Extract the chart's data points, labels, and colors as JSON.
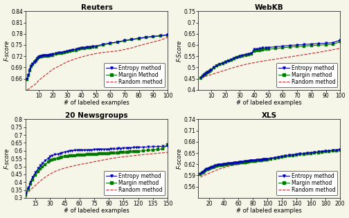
{
  "subplots": [
    {
      "title": "Reuters",
      "xlabel": "# of labeled examples",
      "ylabel": "F-score",
      "xlim": [
        1,
        100
      ],
      "ylim": [
        0.63,
        0.84
      ],
      "xticks": [
        10,
        20,
        30,
        40,
        50,
        60,
        70,
        80,
        90,
        100
      ],
      "ytick_vals": [
        0.66,
        0.69,
        0.72,
        0.75,
        0.78,
        0.81,
        0.84
      ],
      "ytick_labels": [
        "0.66",
        "0.69",
        "0.72",
        "0.75",
        "0.78",
        "0.81",
        "0.84"
      ],
      "entropy_x": [
        2,
        3,
        4,
        5,
        6,
        7,
        8,
        9,
        10,
        11,
        12,
        13,
        14,
        15,
        16,
        17,
        18,
        19,
        20,
        22,
        24,
        26,
        28,
        30,
        32,
        34,
        36,
        38,
        40,
        42,
        44,
        46,
        48,
        50,
        55,
        60,
        65,
        70,
        75,
        80,
        85,
        90,
        95,
        100
      ],
      "entropy_y": [
        0.66,
        0.67,
        0.685,
        0.695,
        0.7,
        0.705,
        0.71,
        0.715,
        0.718,
        0.72,
        0.721,
        0.722,
        0.722,
        0.722,
        0.723,
        0.723,
        0.724,
        0.724,
        0.725,
        0.727,
        0.729,
        0.73,
        0.732,
        0.733,
        0.735,
        0.737,
        0.738,
        0.74,
        0.742,
        0.743,
        0.744,
        0.745,
        0.746,
        0.747,
        0.752,
        0.755,
        0.758,
        0.762,
        0.765,
        0.768,
        0.771,
        0.773,
        0.775,
        0.777
      ],
      "margin_x": [
        2,
        3,
        4,
        5,
        6,
        7,
        8,
        9,
        10,
        11,
        12,
        13,
        14,
        15,
        16,
        17,
        18,
        19,
        20,
        22,
        24,
        26,
        28,
        30,
        32,
        34,
        36,
        38,
        40,
        42,
        44,
        46,
        48,
        50,
        55,
        60,
        65,
        70,
        75,
        80,
        85,
        90,
        95,
        100
      ],
      "margin_y": [
        0.658,
        0.668,
        0.682,
        0.692,
        0.698,
        0.703,
        0.708,
        0.713,
        0.716,
        0.718,
        0.719,
        0.72,
        0.72,
        0.72,
        0.721,
        0.721,
        0.722,
        0.722,
        0.723,
        0.725,
        0.727,
        0.728,
        0.73,
        0.731,
        0.733,
        0.735,
        0.736,
        0.738,
        0.74,
        0.741,
        0.742,
        0.743,
        0.744,
        0.745,
        0.75,
        0.754,
        0.757,
        0.761,
        0.764,
        0.767,
        0.77,
        0.772,
        0.774,
        0.776
      ],
      "random_x": [
        2,
        3,
        4,
        5,
        6,
        7,
        8,
        9,
        10,
        15,
        20,
        25,
        30,
        35,
        40,
        45,
        50,
        55,
        60,
        65,
        70,
        75,
        80,
        85,
        90,
        95,
        100
      ],
      "random_y": [
        0.63,
        0.632,
        0.635,
        0.638,
        0.64,
        0.643,
        0.646,
        0.65,
        0.655,
        0.67,
        0.685,
        0.695,
        0.705,
        0.712,
        0.718,
        0.723,
        0.727,
        0.73,
        0.732,
        0.734,
        0.738,
        0.742,
        0.748,
        0.753,
        0.758,
        0.763,
        0.77
      ],
      "legend_labels": [
        "Entropy method",
        "Margin Method",
        "Random method"
      ]
    },
    {
      "title": "WebKB",
      "xlabel": "# of labeled examples",
      "ylabel": "F-Score",
      "xlim": [
        1,
        100
      ],
      "ylim": [
        0.4,
        0.75
      ],
      "xticks": [
        10,
        20,
        30,
        40,
        50,
        60,
        70,
        80,
        90,
        100
      ],
      "ytick_vals": [
        0.4,
        0.45,
        0.5,
        0.55,
        0.6,
        0.65,
        0.7,
        0.75
      ],
      "ytick_labels": [
        "0.4",
        "0.45",
        "0.5",
        "0.55",
        "0.6",
        "0.65",
        "0.7",
        "0.75"
      ],
      "entropy_x": [
        3,
        4,
        5,
        6,
        7,
        8,
        9,
        10,
        12,
        14,
        16,
        18,
        20,
        22,
        24,
        26,
        28,
        30,
        32,
        34,
        36,
        38,
        40,
        42,
        44,
        46,
        48,
        50,
        55,
        60,
        65,
        70,
        75,
        80,
        85,
        90,
        95,
        100
      ],
      "entropy_y": [
        0.455,
        0.462,
        0.468,
        0.473,
        0.477,
        0.481,
        0.485,
        0.49,
        0.5,
        0.508,
        0.515,
        0.52,
        0.525,
        0.53,
        0.535,
        0.54,
        0.545,
        0.55,
        0.554,
        0.557,
        0.56,
        0.562,
        0.58,
        0.582,
        0.584,
        0.586,
        0.587,
        0.589,
        0.592,
        0.595,
        0.598,
        0.6,
        0.602,
        0.604,
        0.606,
        0.608,
        0.61,
        0.622
      ],
      "margin_x": [
        3,
        4,
        5,
        6,
        7,
        8,
        9,
        10,
        12,
        14,
        16,
        18,
        20,
        22,
        24,
        26,
        28,
        30,
        32,
        34,
        36,
        38,
        40,
        42,
        44,
        46,
        48,
        50,
        55,
        60,
        65,
        70,
        75,
        80,
        85,
        90,
        95,
        100
      ],
      "margin_y": [
        0.453,
        0.46,
        0.466,
        0.471,
        0.475,
        0.479,
        0.483,
        0.488,
        0.498,
        0.506,
        0.513,
        0.518,
        0.523,
        0.528,
        0.533,
        0.538,
        0.543,
        0.548,
        0.552,
        0.555,
        0.558,
        0.56,
        0.572,
        0.574,
        0.576,
        0.578,
        0.58,
        0.581,
        0.584,
        0.588,
        0.591,
        0.593,
        0.595,
        0.597,
        0.599,
        0.601,
        0.603,
        0.614
      ],
      "random_x": [
        3,
        5,
        7,
        10,
        15,
        20,
        25,
        30,
        35,
        40,
        45,
        50,
        55,
        60,
        65,
        70,
        75,
        80,
        85,
        90,
        95,
        100
      ],
      "random_y": [
        0.453,
        0.458,
        0.462,
        0.468,
        0.478,
        0.488,
        0.498,
        0.507,
        0.515,
        0.521,
        0.527,
        0.532,
        0.537,
        0.542,
        0.547,
        0.552,
        0.557,
        0.562,
        0.567,
        0.573,
        0.579,
        0.585
      ],
      "legend_labels": [
        "Entropy method",
        "Margin method",
        "Random method"
      ]
    },
    {
      "title": "20 Newsgroups",
      "xlabel": "# of labeled examples",
      "ylabel": "F-score",
      "xlim": [
        5,
        150
      ],
      "ylim": [
        0.3,
        0.8
      ],
      "xticks": [
        15,
        30,
        45,
        60,
        75,
        90,
        105,
        120,
        135,
        150
      ],
      "ytick_vals": [
        0.3,
        0.35,
        0.4,
        0.45,
        0.5,
        0.55,
        0.6,
        0.65,
        0.7,
        0.75,
        0.8
      ],
      "ytick_labels": [
        "0.3",
        "0.35",
        "0.4",
        "0.45",
        "0.5",
        "0.55",
        "0.6",
        "0.65",
        "0.7",
        "0.75",
        "0.8"
      ],
      "entropy_x": [
        5,
        8,
        10,
        12,
        15,
        18,
        20,
        22,
        25,
        28,
        30,
        32,
        35,
        38,
        40,
        42,
        45,
        48,
        50,
        52,
        55,
        58,
        60,
        62,
        65,
        68,
        70,
        72,
        75,
        78,
        80,
        82,
        85,
        88,
        90,
        92,
        95,
        98,
        100,
        102,
        105,
        108,
        110,
        112,
        115,
        118,
        120,
        125,
        130,
        135,
        140,
        145,
        150
      ],
      "entropy_y": [
        0.325,
        0.365,
        0.4,
        0.43,
        0.462,
        0.488,
        0.505,
        0.52,
        0.538,
        0.552,
        0.563,
        0.57,
        0.575,
        0.578,
        0.582,
        0.587,
        0.592,
        0.596,
        0.6,
        0.6,
        0.602,
        0.602,
        0.603,
        0.603,
        0.603,
        0.603,
        0.605,
        0.604,
        0.606,
        0.606,
        0.608,
        0.607,
        0.61,
        0.609,
        0.61,
        0.611,
        0.612,
        0.612,
        0.615,
        0.614,
        0.617,
        0.617,
        0.618,
        0.618,
        0.62,
        0.62,
        0.622,
        0.623,
        0.624,
        0.626,
        0.627,
        0.628,
        0.63
      ],
      "margin_x": [
        5,
        8,
        10,
        12,
        15,
        18,
        20,
        22,
        25,
        28,
        30,
        32,
        35,
        38,
        40,
        42,
        45,
        48,
        50,
        52,
        55,
        58,
        60,
        62,
        65,
        68,
        70,
        72,
        75,
        78,
        80,
        82,
        85,
        88,
        90,
        92,
        95,
        98,
        100,
        102,
        105,
        108,
        110,
        112,
        115,
        118,
        120,
        125,
        130,
        135,
        140,
        145,
        150
      ],
      "margin_y": [
        0.318,
        0.355,
        0.388,
        0.415,
        0.445,
        0.468,
        0.483,
        0.496,
        0.513,
        0.527,
        0.537,
        0.543,
        0.548,
        0.551,
        0.555,
        0.558,
        0.562,
        0.565,
        0.568,
        0.568,
        0.57,
        0.571,
        0.572,
        0.573,
        0.574,
        0.575,
        0.576,
        0.576,
        0.578,
        0.578,
        0.58,
        0.58,
        0.582,
        0.582,
        0.583,
        0.584,
        0.585,
        0.586,
        0.588,
        0.589,
        0.59,
        0.591,
        0.592,
        0.593,
        0.595,
        0.596,
        0.597,
        0.6,
        0.602,
        0.605,
        0.608,
        0.612,
        0.638
      ],
      "random_x": [
        5,
        8,
        10,
        15,
        20,
        25,
        30,
        35,
        40,
        45,
        50,
        55,
        60,
        65,
        70,
        75,
        80,
        85,
        90,
        95,
        100,
        110,
        120,
        130,
        140,
        150
      ],
      "random_y": [
        0.318,
        0.338,
        0.352,
        0.38,
        0.408,
        0.432,
        0.452,
        0.468,
        0.48,
        0.49,
        0.498,
        0.505,
        0.512,
        0.518,
        0.523,
        0.53,
        0.536,
        0.542,
        0.548,
        0.553,
        0.558,
        0.565,
        0.572,
        0.578,
        0.584,
        0.59
      ],
      "legend_labels": [
        "Entropy method",
        "Margin method",
        "Random method"
      ]
    },
    {
      "title": "XLS",
      "xlabel": "# of labeled examples",
      "ylabel": "F-score",
      "xlim": [
        5,
        200
      ],
      "ylim": [
        0.53,
        0.74
      ],
      "xticks": [
        20,
        40,
        60,
        80,
        100,
        120,
        140,
        160,
        180,
        200
      ],
      "ytick_vals": [
        0.56,
        0.59,
        0.62,
        0.65,
        0.68,
        0.71,
        0.74
      ],
      "ytick_labels": [
        "0.56",
        "0.59",
        "0.62",
        "0.65",
        "0.68",
        "0.71",
        "0.74"
      ],
      "entropy_x": [
        8,
        10,
        12,
        14,
        16,
        18,
        20,
        22,
        24,
        26,
        28,
        30,
        32,
        34,
        36,
        38,
        40,
        42,
        44,
        46,
        48,
        50,
        52,
        54,
        56,
        58,
        60,
        62,
        64,
        66,
        68,
        70,
        72,
        74,
        76,
        78,
        80,
        82,
        84,
        86,
        88,
        90,
        92,
        94,
        96,
        98,
        100,
        105,
        110,
        115,
        120,
        125,
        130,
        135,
        140,
        145,
        150,
        155,
        160,
        165,
        170,
        175,
        180,
        185,
        190,
        195,
        200
      ],
      "entropy_y": [
        0.595,
        0.598,
        0.601,
        0.604,
        0.607,
        0.608,
        0.61,
        0.612,
        0.613,
        0.614,
        0.616,
        0.617,
        0.618,
        0.618,
        0.619,
        0.619,
        0.62,
        0.621,
        0.621,
        0.622,
        0.622,
        0.623,
        0.623,
        0.624,
        0.624,
        0.625,
        0.625,
        0.626,
        0.626,
        0.626,
        0.627,
        0.627,
        0.628,
        0.628,
        0.629,
        0.629,
        0.63,
        0.63,
        0.63,
        0.631,
        0.631,
        0.632,
        0.632,
        0.633,
        0.633,
        0.633,
        0.634,
        0.636,
        0.638,
        0.639,
        0.641,
        0.642,
        0.644,
        0.645,
        0.647,
        0.648,
        0.649,
        0.65,
        0.651,
        0.652,
        0.653,
        0.654,
        0.655,
        0.656,
        0.657,
        0.658,
        0.659
      ],
      "margin_x": [
        8,
        10,
        12,
        14,
        16,
        18,
        20,
        22,
        24,
        26,
        28,
        30,
        32,
        34,
        36,
        38,
        40,
        42,
        44,
        46,
        48,
        50,
        52,
        54,
        56,
        58,
        60,
        62,
        64,
        66,
        68,
        70,
        72,
        74,
        76,
        78,
        80,
        82,
        84,
        86,
        88,
        90,
        92,
        94,
        96,
        98,
        100,
        105,
        110,
        115,
        120,
        125,
        130,
        135,
        140,
        145,
        150,
        155,
        160,
        165,
        170,
        175,
        180,
        185,
        190,
        195,
        200
      ],
      "margin_y": [
        0.593,
        0.596,
        0.599,
        0.602,
        0.605,
        0.606,
        0.608,
        0.61,
        0.611,
        0.612,
        0.614,
        0.615,
        0.616,
        0.616,
        0.617,
        0.617,
        0.618,
        0.619,
        0.619,
        0.62,
        0.62,
        0.621,
        0.621,
        0.622,
        0.622,
        0.623,
        0.623,
        0.624,
        0.624,
        0.624,
        0.625,
        0.625,
        0.626,
        0.626,
        0.627,
        0.627,
        0.628,
        0.628,
        0.628,
        0.629,
        0.629,
        0.63,
        0.63,
        0.631,
        0.631,
        0.631,
        0.632,
        0.634,
        0.636,
        0.637,
        0.639,
        0.64,
        0.642,
        0.643,
        0.645,
        0.646,
        0.647,
        0.648,
        0.649,
        0.65,
        0.651,
        0.652,
        0.653,
        0.654,
        0.655,
        0.656,
        0.657
      ],
      "random_x": [
        8,
        10,
        15,
        20,
        25,
        30,
        35,
        40,
        50,
        60,
        70,
        80,
        90,
        100,
        110,
        120,
        130,
        140,
        150,
        160,
        170,
        180,
        190,
        200
      ],
      "random_y": [
        0.585,
        0.588,
        0.592,
        0.596,
        0.6,
        0.604,
        0.608,
        0.611,
        0.616,
        0.62,
        0.624,
        0.628,
        0.631,
        0.634,
        0.637,
        0.64,
        0.643,
        0.646,
        0.648,
        0.65,
        0.652,
        0.654,
        0.656,
        0.657
      ],
      "legend_labels": [
        "Entropy method",
        "Margin method",
        "Random method"
      ]
    }
  ],
  "entropy_color": "#0000bb",
  "margin_color": "#007700",
  "random_color": "#cc2222",
  "bg_color": "#f5f5e8",
  "marker_size": 2.5,
  "line_width": 0.8,
  "legend_fontsize": 5.5,
  "title_fontsize": 7.5,
  "tick_fontsize": 5.5,
  "label_fontsize": 6.0
}
